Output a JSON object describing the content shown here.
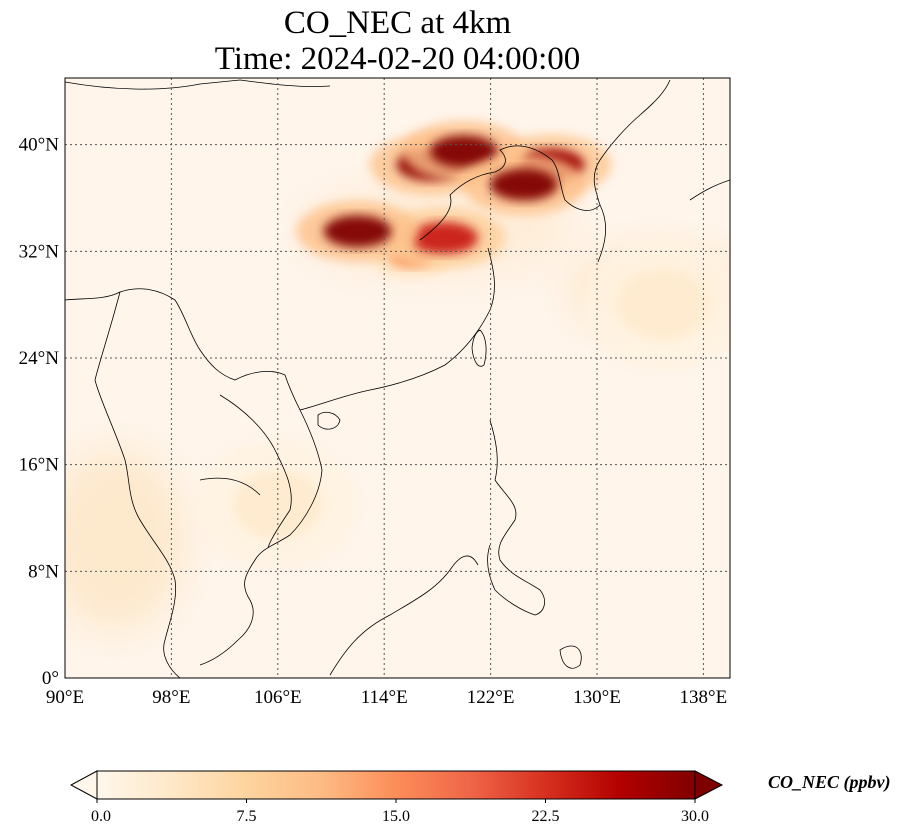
{
  "title": {
    "line1": "CO_NEC at 4km",
    "line2": "Time: 2024-02-20 04:00:00"
  },
  "map": {
    "lon_range": [
      90,
      140
    ],
    "lat_range": [
      0,
      45
    ],
    "lon_ticks": [
      "90°E",
      "98°E",
      "106°E",
      "114°E",
      "122°E",
      "130°E",
      "138°E"
    ],
    "lat_ticks": [
      "0°",
      "8°N",
      "16°N",
      "24°N",
      "32°N",
      "40°N"
    ],
    "gridlines": true,
    "background_color": "#fff5eb"
  },
  "colorbar": {
    "label": "CO_NEC (ppbv)",
    "ticks": [
      "0.0",
      "7.5",
      "15.0",
      "22.5",
      "30.0"
    ],
    "min": 0,
    "max": 30,
    "colormap": "OrRd",
    "colors": [
      "#fff7ec",
      "#fee8c8",
      "#fdd49e",
      "#fdbb84",
      "#fc8d59",
      "#ef6548",
      "#d7301f",
      "#b30000",
      "#7f0000"
    ],
    "extend": "both"
  },
  "chart_data": {
    "type": "heatmap",
    "title": "CO_NEC at 4km",
    "subtitle": "Time: 2024-02-20 04:00:00",
    "variable": "CO_NEC",
    "units": "ppbv",
    "xlim": [
      90,
      140
    ],
    "ylim": [
      0,
      45
    ],
    "hotspots": [
      {
        "lon": 120.0,
        "lat": 39.5,
        "value": 30
      },
      {
        "lon": 124.5,
        "lat": 37.0,
        "value": 30
      },
      {
        "lon": 117.5,
        "lat": 38.5,
        "value": 29
      },
      {
        "lon": 126.5,
        "lat": 38.5,
        "value": 28
      },
      {
        "lon": 112.0,
        "lat": 33.5,
        "value": 30
      },
      {
        "lon": 118.5,
        "lat": 33.0,
        "value": 24
      },
      {
        "lon": 116.0,
        "lat": 31.5,
        "value": 14
      },
      {
        "lon": 106.0,
        "lat": 13.0,
        "value": 3
      },
      {
        "lon": 135.0,
        "lat": 28.0,
        "value": 3
      }
    ]
  }
}
